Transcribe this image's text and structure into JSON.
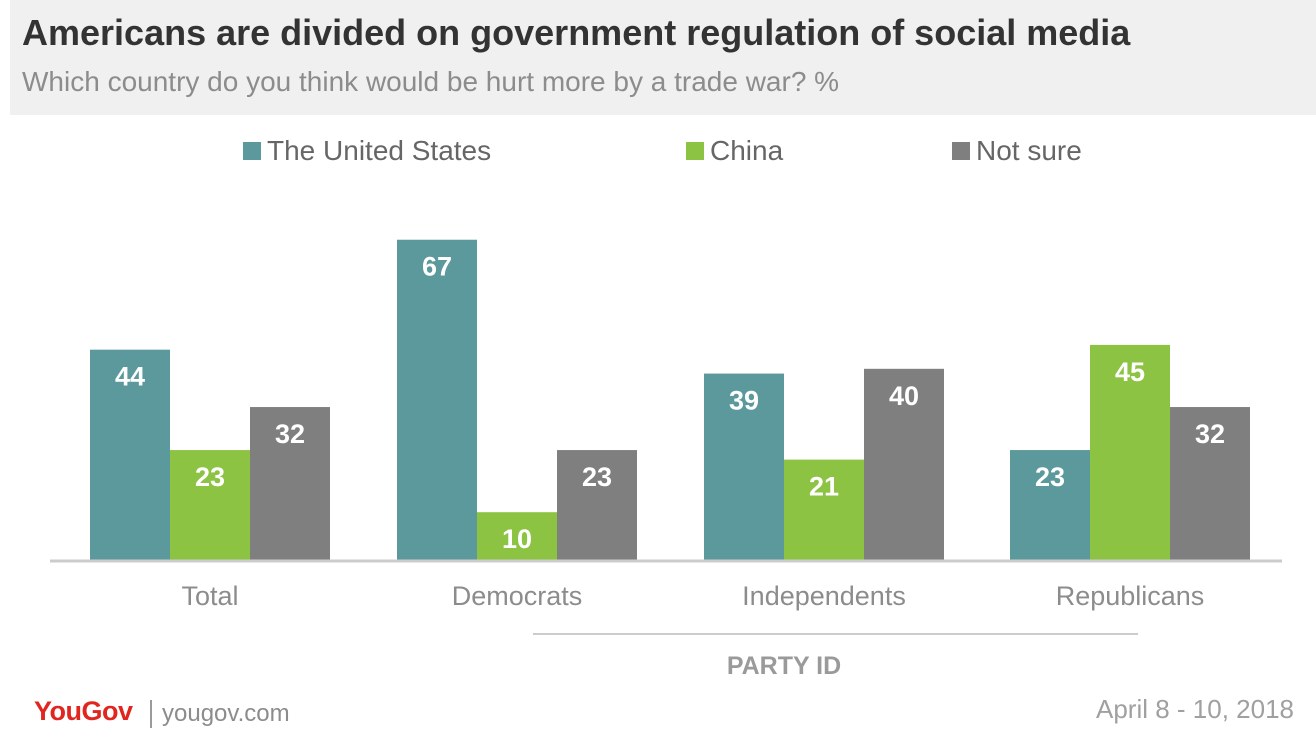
{
  "header": {
    "title": "Americans are divided on government regulation of social media",
    "subtitle": "Which country do you think would be hurt more by a trade war? %"
  },
  "colors": {
    "us": "#5b999c",
    "china": "#8dc342",
    "not_sure": "#7f7f7f",
    "axis": "#cccccc",
    "label": "#8c8c8c"
  },
  "chart_data": {
    "type": "bar",
    "title": "Americans are divided on government regulation of social media",
    "subtitle": "Which country do you think would be hurt more by a trade war? %",
    "categories": [
      "Total",
      "Democrats",
      "Independents",
      "Republicans"
    ],
    "series": [
      {
        "name": "The United States",
        "color": "#5b999c",
        "values": [
          44,
          67,
          39,
          23
        ]
      },
      {
        "name": "China",
        "color": "#8dc342",
        "values": [
          23,
          10,
          21,
          45
        ]
      },
      {
        "name": "Not sure",
        "color": "#7f7f7f",
        "values": [
          32,
          23,
          40,
          32
        ]
      }
    ],
    "group_label": "PARTY ID",
    "ylim": [
      0,
      70
    ],
    "grid": false,
    "legend_position": "top",
    "data_labels": true
  },
  "footer": {
    "brand": "YouGov",
    "url": "yougov.com",
    "date": "April 8 - 10, 2018"
  }
}
